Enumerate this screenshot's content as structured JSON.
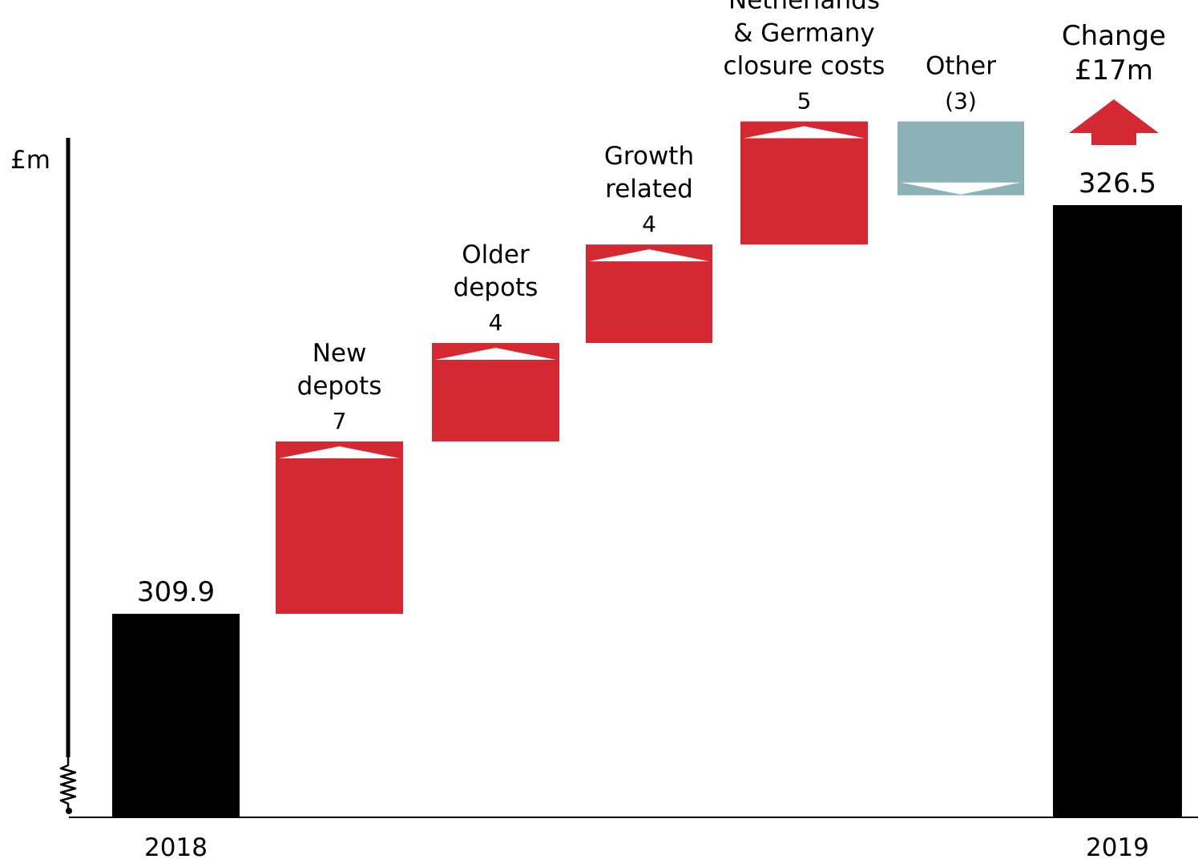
{
  "chart_data": {
    "type": "waterfall",
    "unit_label": "£m",
    "title": "",
    "axis_break": true,
    "steps": [
      {
        "label_lines": [
          "2018"
        ],
        "value_label": "309.9",
        "kind": "total",
        "value": 309.9
      },
      {
        "label_lines": [
          "New",
          "depots"
        ],
        "value_label": "7",
        "kind": "increase",
        "value": 7
      },
      {
        "label_lines": [
          "Older",
          "depots"
        ],
        "value_label": "4",
        "kind": "increase",
        "value": 4
      },
      {
        "label_lines": [
          "Growth",
          "related"
        ],
        "value_label": "4",
        "kind": "increase",
        "value": 4
      },
      {
        "label_lines": [
          "Netherlands",
          "& Germany",
          "closure costs"
        ],
        "value_label": "5",
        "kind": "increase",
        "value": 5
      },
      {
        "label_lines": [
          "Other"
        ],
        "value_label": "(3)",
        "kind": "decrease",
        "value": -3
      },
      {
        "label_lines": [
          "2019"
        ],
        "value_label": "326.5",
        "kind": "total",
        "value": 326.5
      }
    ],
    "change": {
      "lines": [
        "Change",
        "£17m"
      ],
      "direction": "up"
    },
    "colors": {
      "total": "#000000",
      "increase": "#d42832",
      "decrease": "#8cb1b6",
      "marker": "#ffffff"
    }
  }
}
